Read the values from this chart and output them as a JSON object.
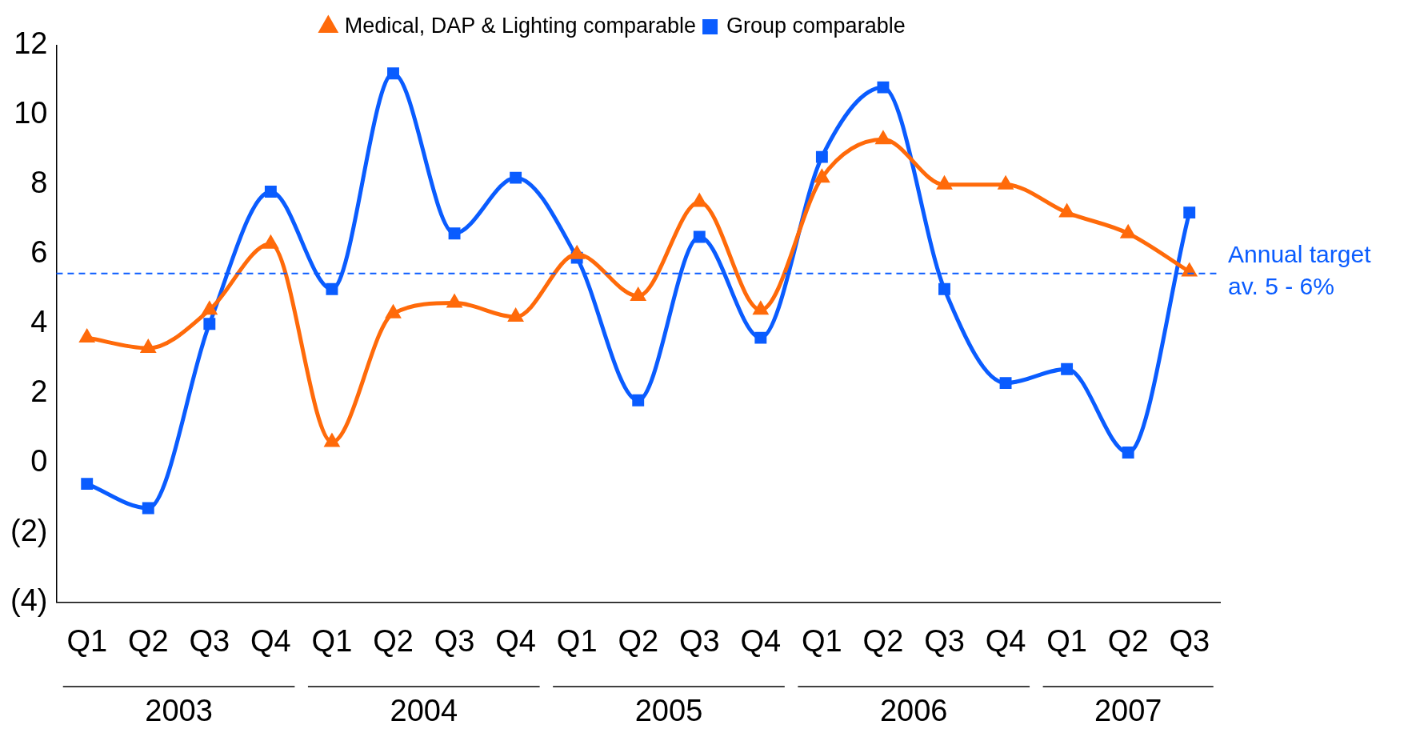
{
  "chart_data": {
    "type": "line",
    "categories": [
      "Q1",
      "Q2",
      "Q3",
      "Q4",
      "Q1",
      "Q2",
      "Q3",
      "Q4",
      "Q1",
      "Q2",
      "Q3",
      "Q4",
      "Q1",
      "Q2",
      "Q3",
      "Q4",
      "Q1",
      "Q2",
      "Q3"
    ],
    "series": [
      {
        "name": "Group comparable",
        "color": "#0a5cff",
        "marker": "square",
        "values": [
          -0.6,
          -1.3,
          4.0,
          7.8,
          5.0,
          11.2,
          6.6,
          8.2,
          5.9,
          1.8,
          6.5,
          3.6,
          8.8,
          10.8,
          5.0,
          2.3,
          2.7,
          0.3,
          7.2
        ]
      },
      {
        "name": "Medical, DAP & Lighting comparable",
        "color": "#ff6a0a",
        "marker": "triangle",
        "values": [
          3.6,
          3.3,
          4.4,
          6.3,
          0.6,
          4.3,
          4.6,
          4.2,
          6.0,
          4.8,
          7.5,
          4.4,
          8.2,
          9.3,
          8.0,
          8.0,
          7.2,
          6.6,
          5.5
        ]
      }
    ],
    "ylim": [
      -4,
      12
    ],
    "yticks": [
      {
        "value": -4,
        "label": "(4)"
      },
      {
        "value": -2,
        "label": "(2)"
      },
      0,
      2,
      4,
      6,
      8,
      10,
      12
    ],
    "ref_lines": [
      {
        "axis": "y",
        "value": 5.45,
        "label": "Annual target av. 5 - 6%",
        "color": "#0a5cff",
        "line_style": "dashed"
      }
    ],
    "annotations": [
      "2003",
      "2004",
      "2005",
      "2006",
      "2007"
    ],
    "legend": "top",
    "grid": false,
    "line_style": "solid"
  }
}
